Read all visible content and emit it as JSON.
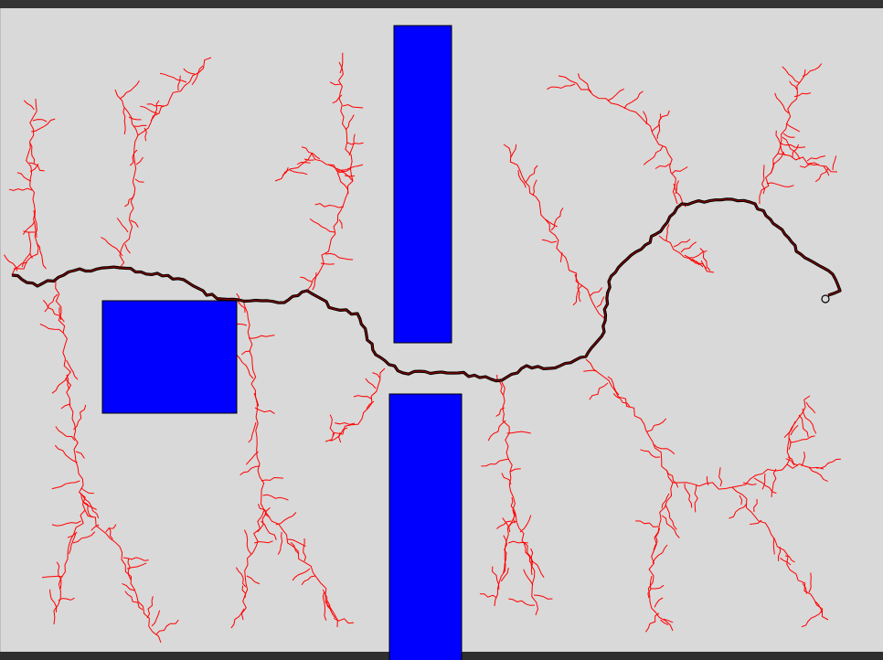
{
  "colors": {
    "background": "#d9d9d9",
    "obstacle": "#0000ff",
    "obstacle_border": "#000000",
    "tree_edge": "#ff0000",
    "path_outer": "#000000",
    "path_inner": "#8b0000",
    "goal_marker": "#000000"
  },
  "tree_branch_count": 14
}
